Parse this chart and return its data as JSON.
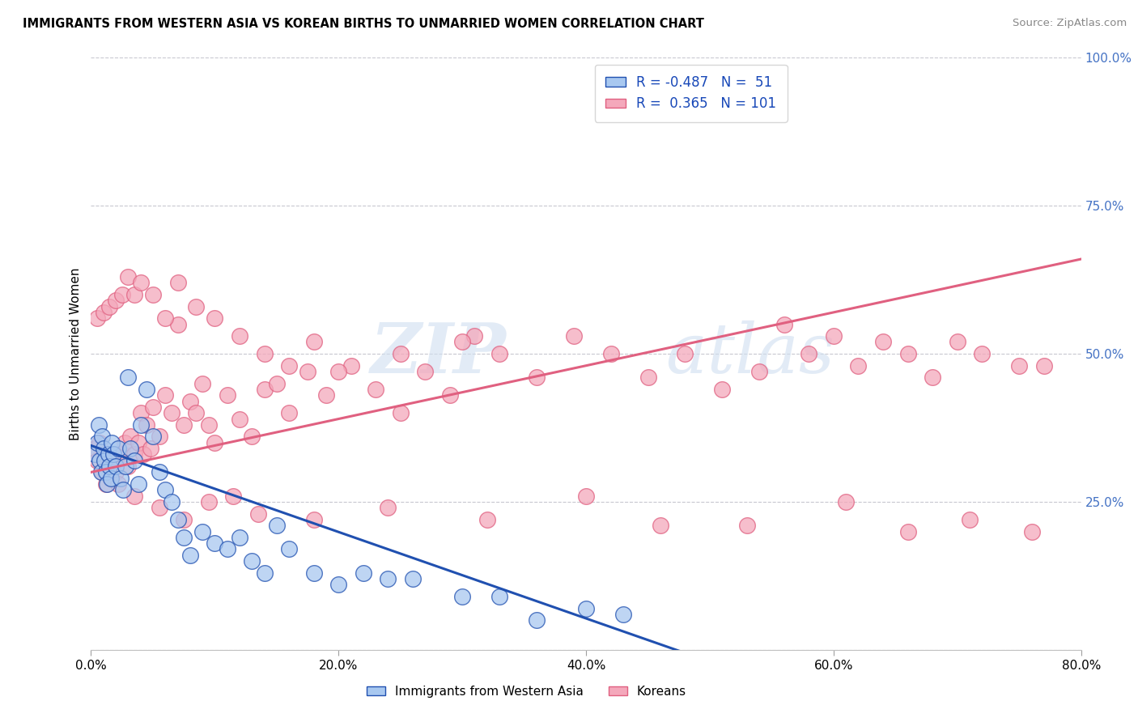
{
  "title": "IMMIGRANTS FROM WESTERN ASIA VS KOREAN BIRTHS TO UNMARRIED WOMEN CORRELATION CHART",
  "source": "Source: ZipAtlas.com",
  "ylabel": "Births to Unmarried Women",
  "legend_label_1": "Immigrants from Western Asia",
  "legend_label_2": "Koreans",
  "r1": -0.487,
  "n1": 51,
  "r2": 0.365,
  "n2": 101,
  "color_blue": "#A8C8F0",
  "color_pink": "#F4A8BB",
  "color_blue_line": "#2050B0",
  "color_pink_line": "#E06080",
  "watermark_top": "ZIP",
  "watermark_bot": "atlas",
  "xlim": [
    0.0,
    0.8
  ],
  "ylim": [
    0.0,
    1.0
  ],
  "xticks": [
    0.0,
    0.2,
    0.4,
    0.6,
    0.8
  ],
  "yticks_right": [
    0.25,
    0.5,
    0.75,
    1.0
  ],
  "blue_trend_x": [
    0.0,
    0.5
  ],
  "blue_trend_y": [
    0.345,
    -0.02
  ],
  "pink_trend_x": [
    0.0,
    0.8
  ],
  "pink_trend_y": [
    0.3,
    0.66
  ],
  "blue_x": [
    0.003,
    0.005,
    0.006,
    0.007,
    0.008,
    0.009,
    0.01,
    0.011,
    0.012,
    0.013,
    0.014,
    0.015,
    0.016,
    0.017,
    0.018,
    0.02,
    0.022,
    0.024,
    0.026,
    0.028,
    0.03,
    0.032,
    0.035,
    0.038,
    0.04,
    0.045,
    0.05,
    0.055,
    0.06,
    0.065,
    0.07,
    0.075,
    0.08,
    0.09,
    0.1,
    0.11,
    0.12,
    0.13,
    0.14,
    0.15,
    0.16,
    0.18,
    0.2,
    0.22,
    0.24,
    0.26,
    0.3,
    0.33,
    0.36,
    0.4,
    0.43
  ],
  "blue_y": [
    0.33,
    0.35,
    0.38,
    0.32,
    0.3,
    0.36,
    0.34,
    0.32,
    0.3,
    0.28,
    0.33,
    0.31,
    0.29,
    0.35,
    0.33,
    0.31,
    0.34,
    0.29,
    0.27,
    0.31,
    0.46,
    0.34,
    0.32,
    0.28,
    0.38,
    0.44,
    0.36,
    0.3,
    0.27,
    0.25,
    0.22,
    0.19,
    0.16,
    0.2,
    0.18,
    0.17,
    0.19,
    0.15,
    0.13,
    0.21,
    0.17,
    0.13,
    0.11,
    0.13,
    0.12,
    0.12,
    0.09,
    0.09,
    0.05,
    0.07,
    0.06
  ],
  "pink_x": [
    0.003,
    0.005,
    0.007,
    0.009,
    0.01,
    0.012,
    0.014,
    0.016,
    0.018,
    0.02,
    0.022,
    0.025,
    0.027,
    0.03,
    0.032,
    0.035,
    0.038,
    0.04,
    0.042,
    0.045,
    0.048,
    0.05,
    0.055,
    0.06,
    0.065,
    0.07,
    0.075,
    0.08,
    0.085,
    0.09,
    0.095,
    0.1,
    0.11,
    0.12,
    0.13,
    0.14,
    0.15,
    0.16,
    0.175,
    0.19,
    0.21,
    0.23,
    0.25,
    0.27,
    0.29,
    0.31,
    0.33,
    0.36,
    0.39,
    0.42,
    0.45,
    0.48,
    0.51,
    0.54,
    0.56,
    0.58,
    0.6,
    0.62,
    0.64,
    0.66,
    0.68,
    0.7,
    0.72,
    0.75,
    0.77,
    0.005,
    0.01,
    0.015,
    0.02,
    0.025,
    0.03,
    0.035,
    0.04,
    0.05,
    0.06,
    0.07,
    0.085,
    0.1,
    0.12,
    0.14,
    0.16,
    0.18,
    0.2,
    0.25,
    0.3,
    0.035,
    0.055,
    0.075,
    0.095,
    0.115,
    0.135,
    0.18,
    0.24,
    0.32,
    0.4,
    0.46,
    0.53,
    0.61,
    0.66,
    0.71,
    0.76
  ],
  "pink_y": [
    0.34,
    0.32,
    0.35,
    0.3,
    0.33,
    0.28,
    0.31,
    0.32,
    0.33,
    0.3,
    0.28,
    0.33,
    0.35,
    0.31,
    0.36,
    0.33,
    0.35,
    0.4,
    0.33,
    0.38,
    0.34,
    0.41,
    0.36,
    0.43,
    0.4,
    0.55,
    0.38,
    0.42,
    0.4,
    0.45,
    0.38,
    0.35,
    0.43,
    0.39,
    0.36,
    0.44,
    0.45,
    0.4,
    0.47,
    0.43,
    0.48,
    0.44,
    0.4,
    0.47,
    0.43,
    0.53,
    0.5,
    0.46,
    0.53,
    0.5,
    0.46,
    0.5,
    0.44,
    0.47,
    0.55,
    0.5,
    0.53,
    0.48,
    0.52,
    0.5,
    0.46,
    0.52,
    0.5,
    0.48,
    0.48,
    0.56,
    0.57,
    0.58,
    0.59,
    0.6,
    0.63,
    0.6,
    0.62,
    0.6,
    0.56,
    0.62,
    0.58,
    0.56,
    0.53,
    0.5,
    0.48,
    0.52,
    0.47,
    0.5,
    0.52,
    0.26,
    0.24,
    0.22,
    0.25,
    0.26,
    0.23,
    0.22,
    0.24,
    0.22,
    0.26,
    0.21,
    0.21,
    0.25,
    0.2,
    0.22,
    0.2
  ]
}
